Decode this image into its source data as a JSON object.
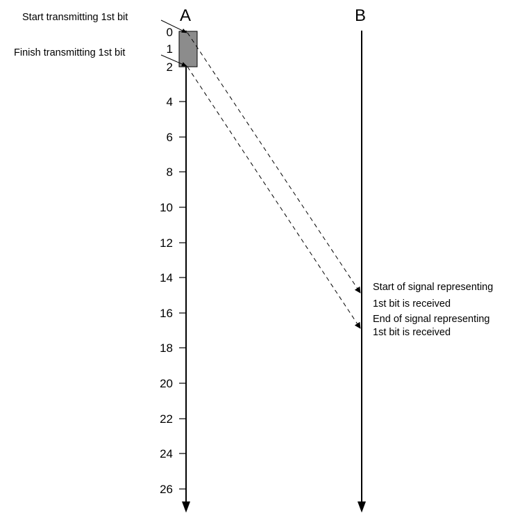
{
  "nodes": {
    "a": "A",
    "b": "B"
  },
  "ticks": [
    "0",
    "1",
    "2",
    "4",
    "6",
    "8",
    "10",
    "12",
    "14",
    "16",
    "18",
    "20",
    "22",
    "24",
    "26"
  ],
  "annotations": {
    "start_transmit": "Start transmitting 1st bit",
    "finish_transmit": "Finish transmitting 1st bit",
    "start_received_line1": "Start of signal representing",
    "start_received_line2": "1st bit is received",
    "end_received_line1": "End of signal representing",
    "end_received_line2": "1st bit is received"
  },
  "colors": {
    "line": "#000000",
    "bit_box_fill": "#8c8c8c",
    "background": "#ffffff"
  }
}
